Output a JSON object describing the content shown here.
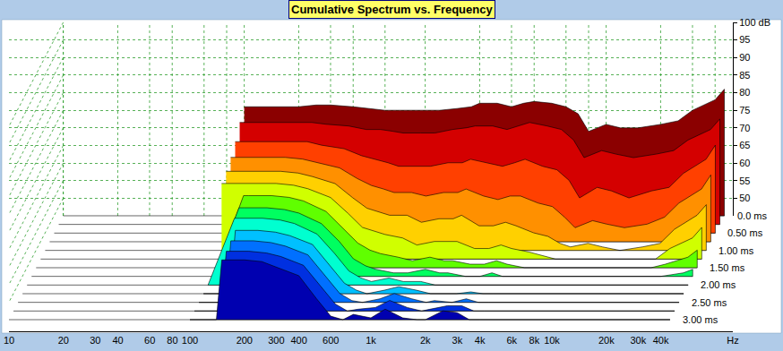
{
  "chart_data": {
    "type": "waterfall",
    "title": "Cumulative Spectrum vs. Frequency",
    "log": "x",
    "grid": true,
    "x": [
      100,
      140,
      150,
      200,
      250,
      300,
      400,
      500,
      600,
      700,
      800,
      1000,
      1200,
      1500,
      1800,
      2000,
      2500,
      3000,
      3500,
      4000,
      5000,
      6000,
      7000,
      8000,
      10000,
      12000,
      15000,
      20000,
      25000,
      30000,
      40000,
      45000
    ],
    "xlim": [
      10,
      100000
    ],
    "xticks": [
      10,
      20,
      30,
      40,
      60,
      80,
      100,
      200,
      300,
      400,
      600,
      {
        "value": 1000,
        "label": "1k"
      },
      {
        "value": 2000,
        "label": "2k"
      },
      {
        "value": 3000,
        "label": "3k"
      },
      {
        "value": 4000,
        "label": "4k"
      },
      {
        "value": 6000,
        "label": "6k"
      },
      {
        "value": 8000,
        "label": "8k"
      },
      {
        "value": 10000,
        "label": "10k"
      },
      {
        "value": 20000,
        "label": "20k"
      },
      {
        "value": 30000,
        "label": "30k"
      },
      {
        "value": 40000,
        "label": "40k"
      },
      {
        "value": 100000,
        "label": "Hz"
      }
    ],
    "ylim": [
      45,
      100
    ],
    "yticks": [
      50,
      55,
      60,
      65,
      70,
      75,
      80,
      85,
      90,
      95,
      {
        "value": 100,
        "label": "100 dB"
      }
    ],
    "zlim": [
      0,
      3
    ],
    "zticks": [
      {
        "value": 0,
        "label": "0.0 ms"
      },
      {
        "value": 0.5,
        "label": "0.50 ms"
      },
      {
        "value": 1,
        "label": "1.00 ms"
      },
      {
        "value": 1.5,
        "label": "1.50 ms"
      },
      {
        "value": 2,
        "label": "2.00 ms"
      },
      {
        "value": 2.5,
        "label": "2.50 ms"
      },
      {
        "value": 3,
        "label": "3.00 ms"
      }
    ],
    "series": [
      {
        "time": 0,
        "color": "#8b0000",
        "values": [
          76,
          76,
          76,
          76,
          76.5,
          76.5,
          76,
          75.5,
          75,
          75,
          75,
          75,
          75,
          75.5,
          76,
          77,
          77,
          76,
          77,
          77.5,
          77,
          76,
          74,
          69,
          71,
          70,
          70,
          71,
          72,
          75,
          78,
          81
        ]
      },
      {
        "time": 0.25,
        "color": "#d40000",
        "values": [
          74,
          74,
          74,
          74,
          74,
          73.5,
          73,
          72,
          72,
          71.5,
          71,
          71,
          71,
          72,
          72.5,
          73,
          73,
          72,
          73,
          74,
          73,
          72,
          69,
          64,
          66,
          65,
          64,
          65,
          66,
          69,
          72,
          75
        ]
      },
      {
        "time": 0.5,
        "color": "#ff4000",
        "values": [
          71,
          71,
          71,
          71,
          71,
          70,
          69,
          67,
          66,
          65,
          64,
          64,
          64,
          65,
          65,
          66,
          65,
          64,
          65,
          66,
          64,
          63,
          60,
          55,
          58,
          57,
          55,
          57,
          58,
          62,
          66,
          70
        ]
      },
      {
        "time": 0.75,
        "color": "#ff9000",
        "values": [
          69,
          69,
          69,
          69,
          68.5,
          67.5,
          66,
          63,
          61,
          60,
          59,
          59,
          58,
          59,
          59,
          60,
          58,
          57,
          58,
          58,
          56,
          55,
          52,
          49,
          51,
          50,
          49,
          50,
          52,
          56,
          60,
          64
        ]
      },
      {
        "time": 1,
        "color": "#ffd000",
        "values": [
          67.5,
          67.5,
          67.5,
          67.5,
          67,
          66,
          64,
          60,
          57,
          56,
          55,
          55,
          53,
          54,
          54,
          55,
          52,
          52,
          53,
          52,
          50,
          49,
          47,
          46,
          47,
          46,
          45,
          46,
          47,
          51,
          55,
          58
        ]
      },
      {
        "time": 1.25,
        "color": "#d0ff00",
        "values": [
          66.5,
          66.5,
          66.5,
          66.5,
          66,
          65,
          62.5,
          58,
          54,
          53,
          52,
          51,
          49,
          50,
          50,
          50,
          48,
          48,
          49,
          48,
          47,
          46,
          45,
          45,
          45,
          45,
          45,
          45,
          45,
          48,
          51,
          54
        ]
      },
      {
        "time": 1.5,
        "color": "#60ff00",
        "values": [
          45,
          65.5,
          65.5,
          65.5,
          65,
          64,
          61,
          56,
          52,
          50,
          49,
          48,
          47,
          48,
          47,
          47,
          46,
          46,
          47,
          46,
          45,
          45,
          45,
          45,
          45,
          45,
          45,
          45,
          45,
          46,
          48,
          50
        ]
      },
      {
        "time": 1.75,
        "color": "#00ff60",
        "values": [
          45,
          64.5,
          64.5,
          64.5,
          64,
          63,
          60,
          55,
          50,
          48,
          47,
          46,
          46,
          47,
          46,
          46,
          45,
          45,
          46,
          45,
          45,
          45,
          45,
          45,
          45,
          45,
          45,
          45,
          45,
          45,
          46,
          47
        ]
      },
      {
        "time": 2,
        "color": "#00ffd0",
        "values": [
          45,
          64,
          64,
          64,
          63.5,
          62.5,
          59.5,
          54,
          49,
          47,
          46,
          47,
          46,
          46,
          45,
          45,
          45,
          45,
          45,
          45,
          45,
          45,
          45,
          45,
          45,
          45,
          45,
          45,
          45,
          45,
          45,
          45
        ]
      },
      {
        "time": 2.25,
        "color": "#00c0ff",
        "values": [
          45,
          45,
          63,
          63,
          62.5,
          61.5,
          59,
          53,
          48,
          46,
          45,
          46,
          47,
          46,
          45,
          45,
          45,
          45.5,
          45,
          45,
          45,
          45,
          45,
          45,
          45,
          45,
          45,
          45,
          45,
          45,
          45,
          45
        ]
      },
      {
        "time": 2.5,
        "color": "#0070ff",
        "values": [
          45,
          45,
          62.5,
          62.5,
          62,
          61,
          58.5,
          52.5,
          47.5,
          45.5,
          45,
          46,
          47.5,
          46,
          45,
          45.5,
          45,
          46,
          45,
          45,
          45,
          45,
          45,
          45,
          45,
          45,
          45,
          45,
          45,
          45,
          45,
          45
        ]
      },
      {
        "time": 2.75,
        "color": "#0030e0",
        "values": [
          45,
          45,
          62,
          62,
          61.5,
          60.5,
          58,
          52,
          47,
          45,
          45.5,
          46,
          48,
          46,
          45,
          45.5,
          46.5,
          46.5,
          45,
          45,
          45,
          45,
          45,
          45,
          45,
          45,
          45,
          45,
          45,
          45,
          45,
          45
        ]
      },
      {
        "time": 3,
        "color": "#0000b0",
        "values": [
          45,
          45,
          62,
          62,
          61.5,
          60,
          57.5,
          51,
          46,
          45,
          46.5,
          45.5,
          48,
          45.5,
          45,
          45,
          47.5,
          47,
          45,
          45,
          45,
          45,
          45,
          45,
          45,
          45,
          45,
          45,
          45,
          45,
          45,
          45
        ]
      }
    ]
  }
}
